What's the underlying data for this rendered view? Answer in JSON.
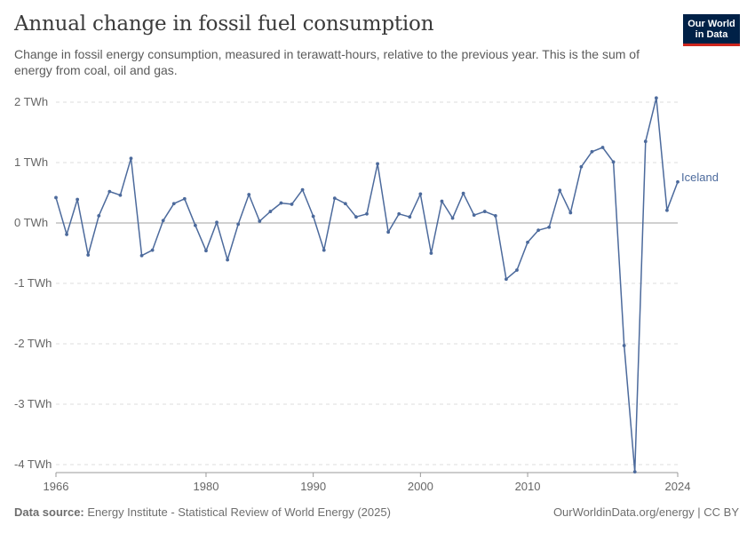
{
  "header": {
    "title": "Annual change in fossil fuel consumption",
    "subtitle": "Change in fossil energy consumption, measured in terawatt-hours, relative to the previous year. This is the sum of energy from coal, oil and gas."
  },
  "logo": {
    "line1": "Our World",
    "line2": "in Data"
  },
  "footer": {
    "source_label": "Data source:",
    "source_text": "Energy Institute - Statistical Review of World Energy (2025)",
    "credit": "OurWorldinData.org/energy | CC BY"
  },
  "colors": {
    "series": "#4c6a9c",
    "grid": "#dddddd",
    "zero_line": "#a0a0a0",
    "logo_bg": "#002147",
    "logo_accent": "#ce261e"
  },
  "chart_data": {
    "type": "line",
    "title": "Annual change in fossil fuel consumption",
    "xlabel": "",
    "ylabel": "",
    "xlim": [
      1966,
      2024
    ],
    "ylim": [
      -4,
      2
    ],
    "grid": true,
    "y_ticks": [
      2,
      1,
      0,
      -1,
      -2,
      -3,
      -4
    ],
    "y_tick_labels": [
      "2 TWh",
      "1 TWh",
      "0 TWh",
      "-1 TWh",
      "-2 TWh",
      "-3 TWh",
      "-4 TWh"
    ],
    "x_ticks": [
      1966,
      1980,
      1990,
      2000,
      2010,
      2024
    ],
    "x_tick_labels": [
      "1966",
      "1980",
      "1990",
      "2000",
      "2010",
      "2024"
    ],
    "series": [
      {
        "name": "Iceland",
        "x": [
          1966,
          1967,
          1968,
          1969,
          1970,
          1971,
          1972,
          1973,
          1974,
          1975,
          1976,
          1977,
          1978,
          1979,
          1980,
          1981,
          1982,
          1983,
          1984,
          1985,
          1986,
          1987,
          1988,
          1989,
          1990,
          1991,
          1992,
          1993,
          1994,
          1995,
          1996,
          1997,
          1998,
          1999,
          2000,
          2001,
          2002,
          2003,
          2004,
          2005,
          2006,
          2007,
          2008,
          2009,
          2010,
          2011,
          2012,
          2013,
          2014,
          2015,
          2016,
          2017,
          2018,
          2019,
          2020,
          2021,
          2022,
          2023,
          2024
        ],
        "values": [
          0.42,
          -0.19,
          0.39,
          -0.53,
          0.12,
          0.52,
          0.46,
          1.07,
          -0.54,
          -0.45,
          0.04,
          0.32,
          0.4,
          -0.04,
          -0.46,
          0.01,
          -0.61,
          -0.02,
          0.47,
          0.03,
          0.19,
          0.33,
          0.31,
          0.55,
          0.11,
          -0.45,
          0.41,
          0.32,
          0.1,
          0.15,
          0.98,
          -0.15,
          0.15,
          0.1,
          0.48,
          -0.5,
          0.36,
          0.08,
          0.49,
          0.13,
          0.19,
          0.12,
          -0.93,
          -0.78,
          -0.32,
          -0.12,
          -0.07,
          0.54,
          0.17,
          0.93,
          1.18,
          1.25,
          1.01,
          -2.03,
          -4.12,
          1.35,
          2.07,
          0.21,
          0.68
        ]
      }
    ]
  }
}
